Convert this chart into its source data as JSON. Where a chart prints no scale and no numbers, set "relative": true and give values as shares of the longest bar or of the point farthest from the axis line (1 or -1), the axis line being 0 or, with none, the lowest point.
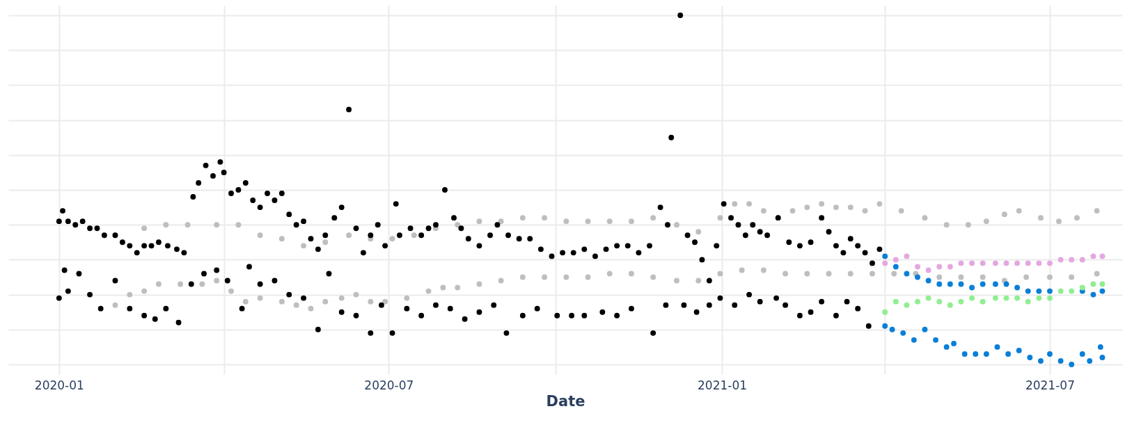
{
  "chart_data": {
    "type": "scatter",
    "xlabel": "Date",
    "relative": true,
    "grid": true,
    "legend": false,
    "marker": "circle",
    "xlim": [
      "2019-12-04",
      "2021-08-10"
    ],
    "xticks": [
      {
        "value": "2020-01",
        "label": "2020-01"
      },
      {
        "value": "2020-04",
        "label": null
      },
      {
        "value": "2020-07",
        "label": "2020-07"
      },
      {
        "value": "2020-10",
        "label": null
      },
      {
        "value": "2021-01",
        "label": "2021-01"
      },
      {
        "value": "2021-04",
        "label": null
      },
      {
        "value": "2021-07",
        "label": "2021-07"
      }
    ],
    "series": [
      {
        "color": "#bebebe",
        "x": [
          "2020-02-01",
          "2020-02-17",
          "2020-02-29",
          "2020-03-12",
          "2020-03-28",
          "2020-04-09",
          "2020-04-21",
          "2020-05-03",
          "2020-05-15",
          "2020-05-27",
          "2020-06-09",
          "2020-06-21",
          "2020-07-03",
          "2020-07-15",
          "2020-07-27",
          "2020-08-08",
          "2020-08-20",
          "2020-09-01",
          "2020-09-13",
          "2020-09-25",
          "2020-10-07",
          "2020-10-19",
          "2020-10-31",
          "2020-11-12",
          "2020-11-24",
          "2020-12-07",
          "2020-12-19",
          "2020-12-31",
          "2021-01-08",
          "2021-01-16",
          "2021-01-24",
          "2021-02-01",
          "2021-02-09",
          "2021-02-17",
          "2021-02-25",
          "2021-03-05",
          "2021-03-13",
          "2021-03-21",
          "2021-03-29",
          "2021-04-10",
          "2021-04-23",
          "2021-05-05",
          "2021-05-17",
          "2021-05-27",
          "2021-06-06",
          "2021-06-14",
          "2021-06-26",
          "2021-07-06",
          "2021-07-16",
          "2021-07-27",
          "2020-02-01",
          "2020-02-09",
          "2020-02-17",
          "2020-02-25",
          "2020-03-08",
          "2020-03-20",
          "2020-03-28",
          "2020-04-05",
          "2020-04-13",
          "2020-04-21",
          "2020-05-03",
          "2020-05-11",
          "2020-05-19",
          "2020-05-27",
          "2020-06-05",
          "2020-06-13",
          "2020-06-21",
          "2020-06-29",
          "2020-07-11",
          "2020-07-23",
          "2020-07-31",
          "2020-08-08",
          "2020-08-20",
          "2020-09-01",
          "2020-09-13",
          "2020-09-25",
          "2020-10-07",
          "2020-10-19",
          "2020-10-31",
          "2020-11-12",
          "2020-11-24",
          "2020-12-07",
          "2020-12-19",
          "2020-12-31",
          "2021-01-12",
          "2021-01-24",
          "2021-02-05",
          "2021-02-17",
          "2021-03-01",
          "2021-03-13",
          "2021-03-25",
          "2021-04-06",
          "2021-04-18",
          "2021-05-01",
          "2021-05-13",
          "2021-05-25",
          "2021-06-06",
          "2021-06-18",
          "2021-07-01",
          "2021-07-13",
          "2021-07-27"
        ],
        "values": [
          0.37,
          0.39,
          0.4,
          0.4,
          0.4,
          0.4,
          0.37,
          0.36,
          0.34,
          0.35,
          0.37,
          0.36,
          0.36,
          0.37,
          0.39,
          0.4,
          0.41,
          0.41,
          0.42,
          0.42,
          0.41,
          0.41,
          0.41,
          0.41,
          0.42,
          0.4,
          0.38,
          0.42,
          0.46,
          0.46,
          0.44,
          0.42,
          0.44,
          0.45,
          0.46,
          0.45,
          0.45,
          0.44,
          0.46,
          0.44,
          0.42,
          0.4,
          0.4,
          0.41,
          0.43,
          0.44,
          0.42,
          0.41,
          0.42,
          0.44,
          0.17,
          0.2,
          0.21,
          0.23,
          0.23,
          0.23,
          0.24,
          0.21,
          0.18,
          0.19,
          0.18,
          0.17,
          0.16,
          0.18,
          0.19,
          0.2,
          0.18,
          0.18,
          0.19,
          0.21,
          0.22,
          0.22,
          0.23,
          0.24,
          0.25,
          0.25,
          0.25,
          0.25,
          0.26,
          0.26,
          0.25,
          0.24,
          0.24,
          0.26,
          0.27,
          0.27,
          0.26,
          0.26,
          0.26,
          0.26,
          0.26,
          0.26,
          0.26,
          0.25,
          0.25,
          0.25,
          0.24,
          0.25,
          0.25,
          0.25,
          0.26
        ]
      },
      {
        "color": "#000000",
        "x": [
          "2020-01-01",
          "2020-01-03",
          "2020-01-06",
          "2020-01-10",
          "2020-01-14",
          "2020-01-18",
          "2020-01-22",
          "2020-01-26",
          "2020-02-01",
          "2020-02-05",
          "2020-02-09",
          "2020-02-13",
          "2020-02-17",
          "2020-02-21",
          "2020-02-25",
          "2020-03-01",
          "2020-03-06",
          "2020-03-10",
          "2020-03-15",
          "2020-03-18",
          "2020-03-22",
          "2020-03-26",
          "2020-03-30",
          "2020-04-01",
          "2020-04-05",
          "2020-04-09",
          "2020-04-13",
          "2020-04-17",
          "2020-04-21",
          "2020-04-25",
          "2020-04-29",
          "2020-05-03",
          "2020-05-07",
          "2020-05-11",
          "2020-05-15",
          "2020-05-19",
          "2020-05-23",
          "2020-05-27",
          "2020-06-01",
          "2020-06-05",
          "2020-06-09",
          "2020-06-13",
          "2020-06-17",
          "2020-06-21",
          "2020-06-25",
          "2020-06-29",
          "2020-07-05",
          "2020-07-07",
          "2020-07-13",
          "2020-07-19",
          "2020-07-23",
          "2020-07-27",
          "2020-08-01",
          "2020-08-06",
          "2020-08-10",
          "2020-08-14",
          "2020-08-20",
          "2020-08-26",
          "2020-08-30",
          "2020-09-05",
          "2020-09-11",
          "2020-09-17",
          "2020-09-23",
          "2020-09-29",
          "2020-10-05",
          "2020-10-11",
          "2020-10-17",
          "2020-10-23",
          "2020-10-29",
          "2020-11-04",
          "2020-11-10",
          "2020-11-16",
          "2020-11-22",
          "2020-11-28",
          "2020-12-02",
          "2020-12-04",
          "2020-12-09",
          "2020-12-13",
          "2020-12-17",
          "2020-12-21",
          "2020-12-25",
          "2020-12-29",
          "2021-01-02",
          "2021-01-06",
          "2021-01-10",
          "2021-01-14",
          "2021-01-18",
          "2021-01-22",
          "2021-01-26",
          "2021-02-01",
          "2021-02-07",
          "2021-02-13",
          "2021-02-19",
          "2021-02-25",
          "2021-03-01",
          "2021-03-05",
          "2021-03-09",
          "2021-03-13",
          "2021-03-17",
          "2021-03-21",
          "2021-03-25",
          "2021-03-29",
          "2020-01-01",
          "2020-01-04",
          "2020-01-06",
          "2020-01-12",
          "2020-01-18",
          "2020-01-24",
          "2020-02-01",
          "2020-02-09",
          "2020-02-17",
          "2020-02-23",
          "2020-02-29",
          "2020-03-07",
          "2020-03-14",
          "2020-03-21",
          "2020-03-28",
          "2020-04-03",
          "2020-04-11",
          "2020-04-15",
          "2020-04-21",
          "2020-04-29",
          "2020-05-07",
          "2020-05-15",
          "2020-05-23",
          "2020-05-29",
          "2020-06-05",
          "2020-06-13",
          "2020-06-21",
          "2020-06-27",
          "2020-07-03",
          "2020-07-11",
          "2020-07-19",
          "2020-07-27",
          "2020-08-04",
          "2020-08-12",
          "2020-08-20",
          "2020-08-28",
          "2020-09-04",
          "2020-09-13",
          "2020-09-21",
          "2020-10-02",
          "2020-10-10",
          "2020-10-17",
          "2020-10-27",
          "2020-11-04",
          "2020-11-12",
          "2020-11-24",
          "2020-12-01",
          "2020-12-11",
          "2020-12-18",
          "2020-12-25",
          "2020-12-31",
          "2021-01-08",
          "2021-01-16",
          "2021-01-22",
          "2021-01-31",
          "2021-02-05",
          "2021-02-13",
          "2021-02-19",
          "2021-02-25",
          "2021-03-05",
          "2021-03-11",
          "2021-03-17",
          "2021-03-23"
        ],
        "values": [
          0.41,
          0.44,
          0.41,
          0.4,
          0.41,
          0.39,
          0.39,
          0.37,
          0.37,
          0.35,
          0.34,
          0.32,
          0.34,
          0.34,
          0.35,
          0.34,
          0.33,
          0.32,
          0.48,
          0.52,
          0.57,
          0.54,
          0.58,
          0.55,
          0.49,
          0.5,
          0.52,
          0.47,
          0.45,
          0.49,
          0.47,
          0.49,
          0.43,
          0.4,
          0.41,
          0.36,
          0.33,
          0.37,
          0.42,
          0.45,
          0.73,
          0.39,
          0.32,
          0.37,
          0.4,
          0.34,
          0.46,
          0.37,
          0.39,
          0.37,
          0.39,
          0.4,
          0.5,
          0.42,
          0.39,
          0.36,
          0.34,
          0.37,
          0.4,
          0.37,
          0.36,
          0.36,
          0.33,
          0.31,
          0.32,
          0.32,
          0.33,
          0.31,
          0.33,
          0.34,
          0.34,
          0.32,
          0.34,
          0.45,
          0.4,
          0.65,
          1.0,
          0.37,
          0.35,
          0.3,
          0.24,
          0.34,
          0.46,
          0.42,
          0.4,
          0.37,
          0.4,
          0.38,
          0.37,
          0.42,
          0.35,
          0.34,
          0.35,
          0.42,
          0.38,
          0.34,
          0.32,
          0.36,
          0.34,
          0.32,
          0.29,
          0.33,
          0.19,
          0.27,
          0.21,
          0.26,
          0.2,
          0.16,
          0.24,
          0.16,
          0.14,
          0.13,
          0.16,
          0.12,
          0.23,
          0.26,
          0.27,
          0.24,
          0.16,
          0.28,
          0.23,
          0.24,
          0.2,
          0.19,
          0.1,
          0.26,
          0.15,
          0.14,
          0.09,
          0.17,
          0.09,
          0.16,
          0.14,
          0.17,
          0.16,
          0.13,
          0.15,
          0.17,
          0.09,
          0.14,
          0.16,
          0.14,
          0.14,
          0.14,
          0.15,
          0.14,
          0.16,
          0.09,
          0.17,
          0.17,
          0.15,
          0.17,
          0.19,
          0.17,
          0.2,
          0.18,
          0.19,
          0.17,
          0.14,
          0.15,
          0.18,
          0.14,
          0.18,
          0.16,
          0.11
        ]
      },
      {
        "color": "#0a7fd8",
        "x": [
          "2021-04-01",
          "2021-04-07",
          "2021-04-13",
          "2021-04-19",
          "2021-04-25",
          "2021-05-01",
          "2021-05-07",
          "2021-05-13",
          "2021-05-19",
          "2021-05-25",
          "2021-06-01",
          "2021-06-07",
          "2021-06-13",
          "2021-06-19",
          "2021-06-25",
          "2021-07-01",
          "2021-07-19",
          "2021-07-25",
          "2021-07-30",
          "2021-04-01",
          "2021-04-05",
          "2021-04-11",
          "2021-04-17",
          "2021-04-23",
          "2021-04-29",
          "2021-05-05",
          "2021-05-09",
          "2021-05-15",
          "2021-05-21",
          "2021-05-27",
          "2021-06-02",
          "2021-06-08",
          "2021-06-14",
          "2021-06-20",
          "2021-06-26",
          "2021-07-01",
          "2021-07-07",
          "2021-07-13",
          "2021-07-19",
          "2021-07-23",
          "2021-07-29",
          "2021-07-30"
        ],
        "values": [
          0.31,
          0.28,
          0.26,
          0.25,
          0.24,
          0.23,
          0.23,
          0.23,
          0.22,
          0.23,
          0.23,
          0.23,
          0.22,
          0.21,
          0.21,
          0.21,
          0.21,
          0.2,
          0.21,
          0.11,
          0.1,
          0.09,
          0.07,
          0.1,
          0.07,
          0.05,
          0.06,
          0.03,
          0.03,
          0.03,
          0.05,
          0.03,
          0.04,
          0.02,
          0.01,
          0.03,
          0.01,
          0,
          0.03,
          0.01,
          0.05,
          0.02
        ]
      },
      {
        "color": "#e4a8e0",
        "x": [
          "2021-04-01",
          "2021-04-07",
          "2021-04-13",
          "2021-04-19",
          "2021-04-25",
          "2021-05-01",
          "2021-05-07",
          "2021-05-13",
          "2021-05-19",
          "2021-05-25",
          "2021-06-01",
          "2021-06-07",
          "2021-06-13",
          "2021-06-19",
          "2021-06-25",
          "2021-07-01",
          "2021-07-07",
          "2021-07-13",
          "2021-07-19",
          "2021-07-25",
          "2021-07-30"
        ],
        "values": [
          0.29,
          0.3,
          0.31,
          0.28,
          0.27,
          0.28,
          0.28,
          0.29,
          0.29,
          0.29,
          0.29,
          0.29,
          0.29,
          0.29,
          0.29,
          0.29,
          0.3,
          0.3,
          0.3,
          0.31,
          0.31
        ]
      },
      {
        "color": "#90ee90",
        "x": [
          "2021-04-01",
          "2021-04-07",
          "2021-04-13",
          "2021-04-19",
          "2021-04-25",
          "2021-05-01",
          "2021-05-07",
          "2021-05-13",
          "2021-05-19",
          "2021-05-25",
          "2021-06-01",
          "2021-06-07",
          "2021-06-13",
          "2021-06-19",
          "2021-06-25",
          "2021-07-01",
          "2021-07-07",
          "2021-07-13",
          "2021-07-19",
          "2021-07-25",
          "2021-07-30"
        ],
        "values": [
          0.15,
          0.18,
          0.17,
          0.18,
          0.19,
          0.18,
          0.17,
          0.18,
          0.19,
          0.18,
          0.19,
          0.19,
          0.19,
          0.18,
          0.19,
          0.19,
          0.21,
          0.21,
          0.22,
          0.23,
          0.23
        ]
      }
    ]
  }
}
